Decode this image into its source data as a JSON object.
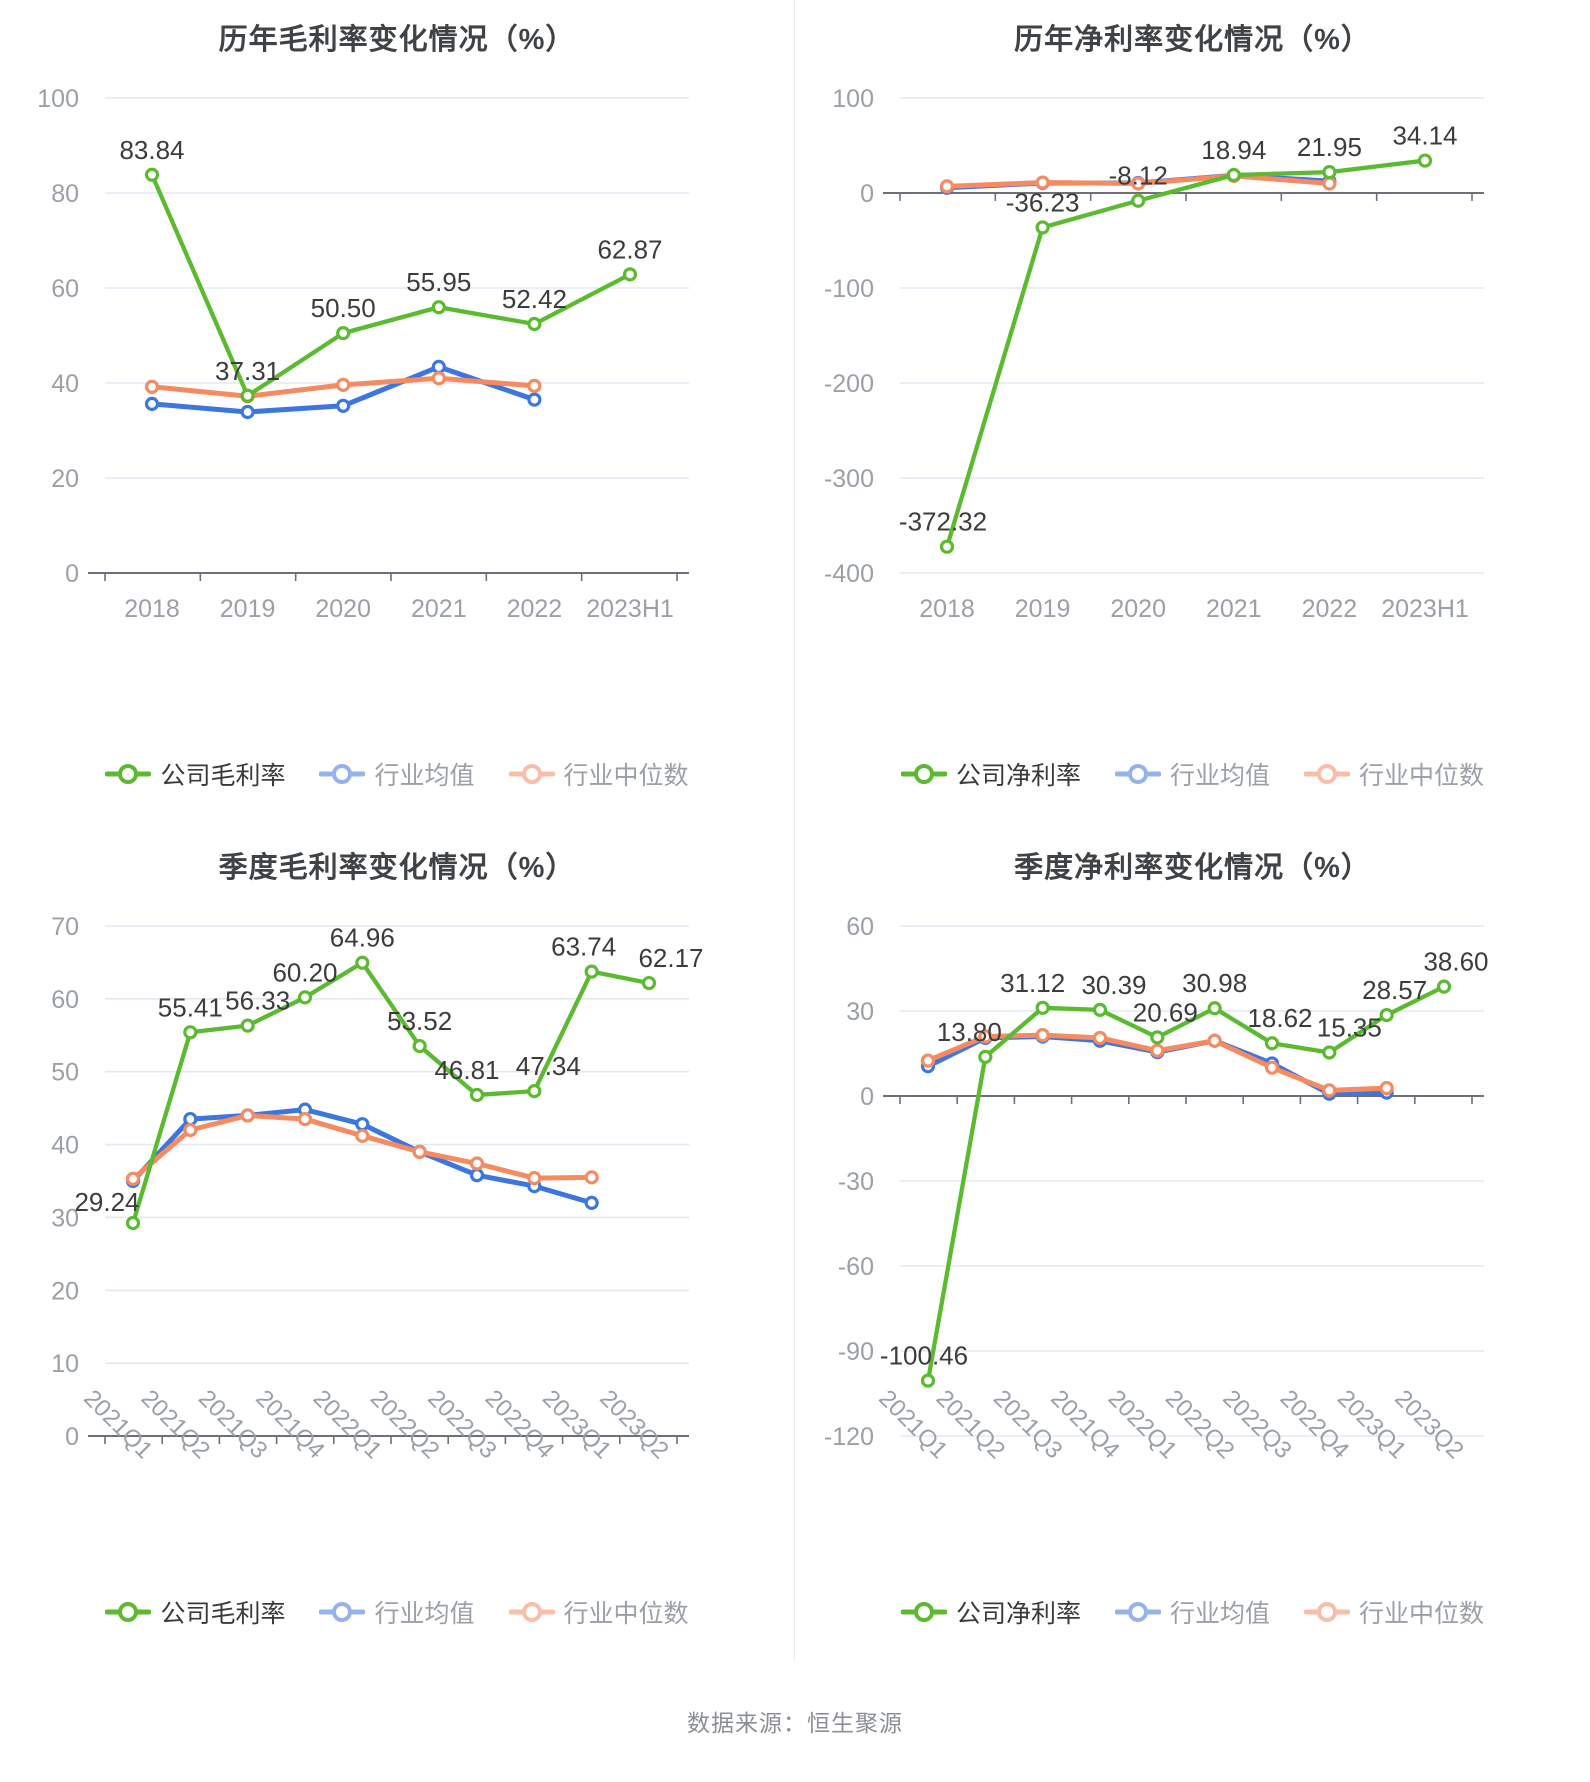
{
  "footer": {
    "source_note": "数据来源：恒生聚源"
  },
  "chart_data": [
    {
      "type": "line",
      "title": "历年毛利率变化情况（%）",
      "categories": [
        "2018",
        "2019",
        "2020",
        "2021",
        "2022",
        "2023H1"
      ],
      "ylim": [
        0,
        100
      ],
      "y_ticks": [
        100,
        80,
        60,
        40,
        20,
        0
      ],
      "grid": true,
      "legend_position": "bottom",
      "series": [
        {
          "name": "公司毛利率",
          "color": "#5CBA30",
          "values": [
            83.84,
            37.31,
            50.5,
            55.95,
            52.42,
            62.87
          ],
          "labels": [
            "83.84",
            "37.31",
            "50.50",
            "55.95",
            "52.42",
            "62.87"
          ]
        },
        {
          "name": "行业均值",
          "color": "#3E76E0",
          "values": [
            35.6,
            33.9,
            35.2,
            43.4,
            36.5
          ]
        },
        {
          "name": "行业中位数",
          "color": "#F68A60",
          "values": [
            39.2,
            37.2,
            39.6,
            41.0,
            39.4
          ]
        }
      ]
    },
    {
      "type": "line",
      "title": "历年净利率变化情况（%）",
      "categories": [
        "2018",
        "2019",
        "2020",
        "2021",
        "2022",
        "2023H1"
      ],
      "ylim": [
        -400,
        100
      ],
      "y_ticks": [
        100,
        0,
        -100,
        -200,
        -300,
        -400
      ],
      "grid": true,
      "legend_position": "bottom",
      "series": [
        {
          "name": "公司净利率",
          "color": "#5CBA30",
          "values": [
            -372.32,
            -36.23,
            -8.12,
            18.94,
            21.95,
            34.14
          ],
          "labels": [
            "-372.32",
            "-36.23",
            "-8.12",
            "18.94",
            "21.95",
            "34.14"
          ]
        },
        {
          "name": "行业均值",
          "color": "#3E76E0",
          "values": [
            5.5,
            10.5,
            10.5,
            18.5,
            12.5
          ]
        },
        {
          "name": "行业中位数",
          "color": "#F68A60",
          "values": [
            7.0,
            11.0,
            10.0,
            18.0,
            10.0
          ]
        }
      ]
    },
    {
      "type": "line",
      "title": "季度毛利率变化情况（%）",
      "categories": [
        "2021Q1",
        "2021Q2",
        "2021Q3",
        "2021Q4",
        "2022Q1",
        "2022Q2",
        "2022Q3",
        "2022Q4",
        "2023Q1",
        "2023Q2"
      ],
      "ylim": [
        0,
        70
      ],
      "y_ticks": [
        70,
        60,
        50,
        40,
        30,
        20,
        10,
        0
      ],
      "grid": true,
      "legend_position": "bottom",
      "series": [
        {
          "name": "公司毛利率",
          "color": "#5CBA30",
          "values": [
            29.24,
            55.41,
            56.33,
            60.2,
            64.96,
            53.52,
            46.81,
            47.34,
            63.74,
            62.17
          ],
          "labels": [
            "29.24",
            "55.41",
            "56.33",
            "60.20",
            "64.96",
            "53.52",
            "46.81",
            "47.34",
            "63.74",
            "62.17"
          ]
        },
        {
          "name": "行业均值",
          "color": "#3E76E0",
          "values": [
            35.0,
            43.5,
            44.0,
            44.8,
            42.8,
            39.0,
            35.8,
            34.3,
            32.0
          ]
        },
        {
          "name": "行业中位数",
          "color": "#F68A60",
          "values": [
            35.3,
            42.0,
            44.0,
            43.5,
            41.2,
            39.0,
            37.4,
            35.4,
            35.5
          ]
        }
      ]
    },
    {
      "type": "line",
      "title": "季度净利率变化情况（%）",
      "categories": [
        "2021Q1",
        "2021Q2",
        "2021Q3",
        "2021Q4",
        "2022Q1",
        "2022Q2",
        "2022Q3",
        "2022Q4",
        "2023Q1",
        "2023Q2"
      ],
      "ylim": [
        -120,
        60
      ],
      "y_ticks": [
        60,
        30,
        0,
        -30,
        -60,
        -90,
        -120
      ],
      "grid": true,
      "legend_position": "bottom",
      "series": [
        {
          "name": "公司净利率",
          "color": "#5CBA30",
          "values": [
            -100.46,
            13.8,
            31.12,
            30.39,
            20.69,
            30.98,
            18.62,
            15.35,
            28.57,
            38.6
          ],
          "labels": [
            "-100.46",
            "13.80",
            "31.12",
            "30.39",
            "20.69",
            "30.98",
            "18.62",
            "15.35",
            "28.57",
            "38.60"
          ]
        },
        {
          "name": "行业均值",
          "color": "#3E76E0",
          "values": [
            10.5,
            20.5,
            21.0,
            19.5,
            15.5,
            19.5,
            11.5,
            0.8,
            1.2
          ]
        },
        {
          "name": "行业中位数",
          "color": "#F68A60",
          "values": [
            12.5,
            21.0,
            21.5,
            20.5,
            16.0,
            19.5,
            10.0,
            2.0,
            2.8
          ]
        }
      ]
    }
  ]
}
